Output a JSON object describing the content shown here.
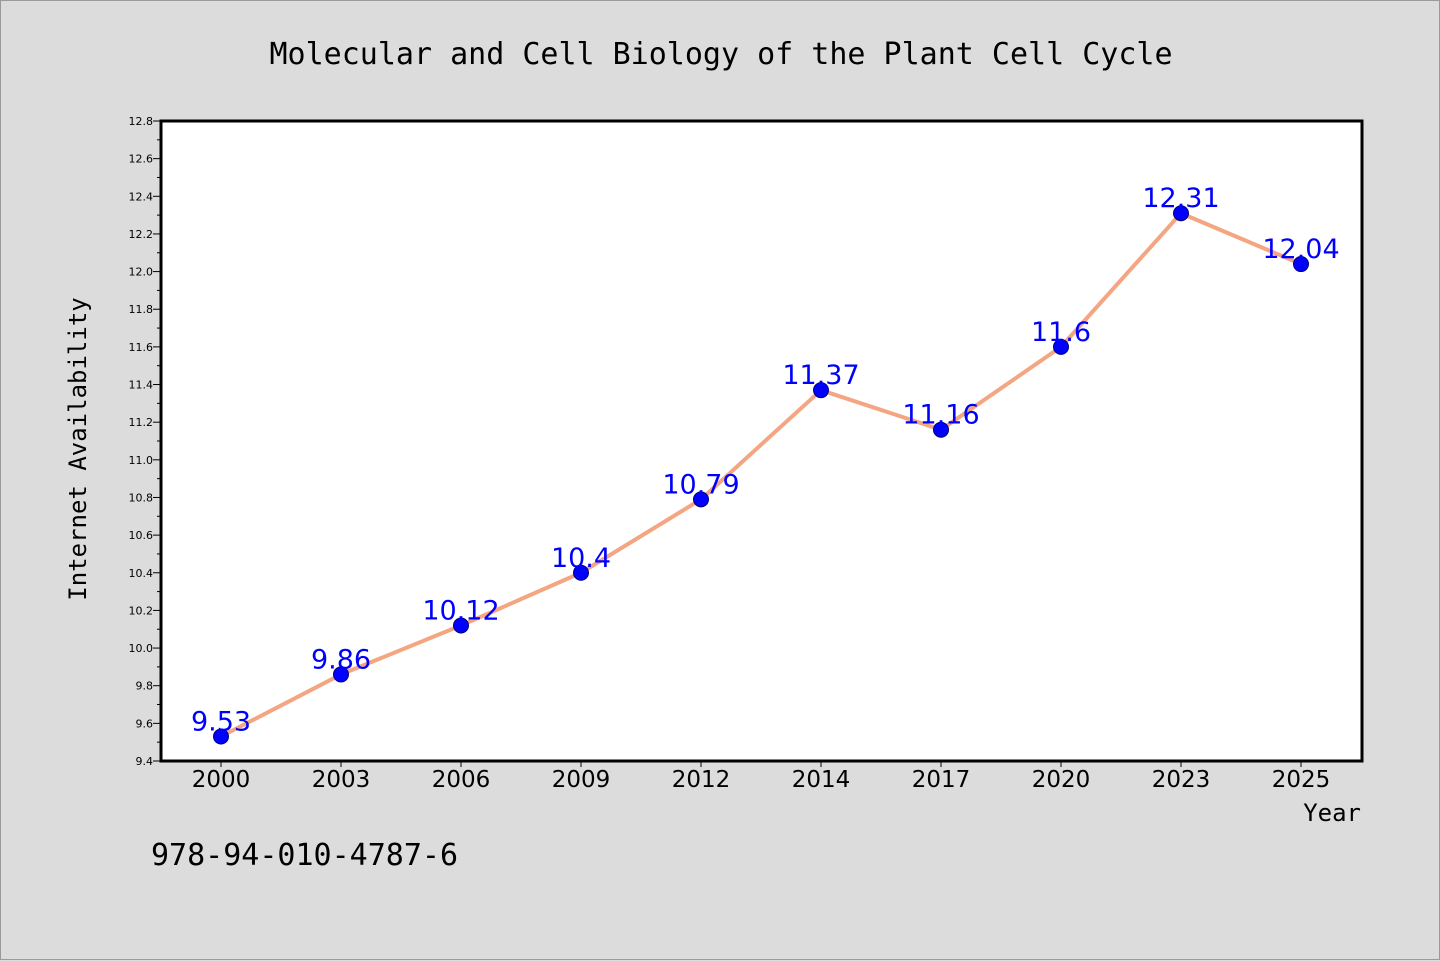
{
  "chart_data": {
    "type": "line",
    "title": "Molecular and Cell Biology of the Plant Cell Cycle",
    "xlabel": "Year",
    "ylabel": "Internet Availability",
    "categories": [
      "2000",
      "2003",
      "2006",
      "2009",
      "2012",
      "2014",
      "2017",
      "2020",
      "2023",
      "2025"
    ],
    "values": [
      9.53,
      9.86,
      10.12,
      10.4,
      10.79,
      11.37,
      11.16,
      11.6,
      12.31,
      12.04
    ],
    "data_labels": [
      "9.53",
      "9.86",
      "10.12",
      "10.4",
      "10.79",
      "11.37",
      "11.16",
      "11.6",
      "12.31",
      "12.04"
    ],
    "ylim": [
      9.4,
      12.8
    ],
    "yticks": [
      "9.4",
      "9.6",
      "9.8",
      "10.0",
      "10.2",
      "10.4",
      "10.6",
      "10.8",
      "11.0",
      "11.2",
      "11.4",
      "11.6",
      "11.8",
      "12.0",
      "12.2",
      "12.4",
      "12.6",
      "12.8"
    ],
    "grid": false,
    "line_color": "#f4a582",
    "marker_color": "#0000ff",
    "label_color": "#0000ff"
  },
  "footer_code": "978-94-010-4787-6"
}
